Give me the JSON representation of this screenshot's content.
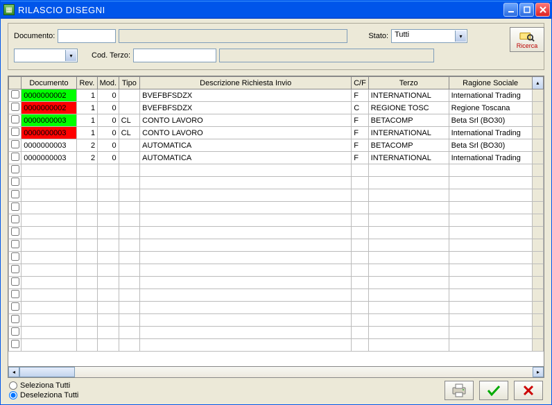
{
  "window": {
    "title": "RILASCIO DISEGNI"
  },
  "filters": {
    "documento_label": "Documento:",
    "documento_value": "",
    "documento_desc": "",
    "stato_label": "Stato:",
    "stato_value": "Tutti",
    "combo_value": "",
    "cod_terzo_label": "Cod. Terzo:",
    "cod_terzo_value": "",
    "terzo_desc": ""
  },
  "search_button": {
    "label": "Ricerca"
  },
  "columns": {
    "chk": "",
    "documento": "Documento",
    "rev": "Rev.",
    "mod": "Mod.",
    "tipo": "Tipo",
    "descr": "Descrizione Richiesta Invio",
    "cf": "C/F",
    "terzo": "Terzo",
    "ragione": "Ragione Sociale"
  },
  "rows": [
    {
      "chk": false,
      "doc": "0000000002",
      "doc_bg": "green",
      "rev": "1",
      "mod": "0",
      "tipo": "",
      "descr": "BVEFBFSDZX",
      "cf": "F",
      "terzo": "INTERNATIONAL",
      "ragione": "International Trading"
    },
    {
      "chk": false,
      "doc": "0000000002",
      "doc_bg": "red",
      "rev": "1",
      "mod": "0",
      "tipo": "",
      "descr": "BVEFBFSDZX",
      "cf": "C",
      "terzo": "REGIONE TOSC",
      "ragione": "Regione Toscana"
    },
    {
      "chk": false,
      "doc": "0000000003",
      "doc_bg": "green",
      "rev": "1",
      "mod": "0",
      "tipo": "CL",
      "descr": "CONTO LAVORO",
      "cf": "F",
      "terzo": "BETACOMP",
      "ragione": "Beta Srl   (BO30)"
    },
    {
      "chk": false,
      "doc": "0000000003",
      "doc_bg": "red",
      "rev": "1",
      "mod": "0",
      "tipo": "CL",
      "descr": "CONTO LAVORO",
      "cf": "F",
      "terzo": "INTERNATIONAL",
      "ragione": "International Trading"
    },
    {
      "chk": false,
      "doc": "0000000003",
      "doc_bg": "",
      "rev": "2",
      "mod": "0",
      "tipo": "",
      "descr": "AUTOMATICA",
      "cf": "F",
      "terzo": "BETACOMP",
      "ragione": "Beta Srl   (BO30)"
    },
    {
      "chk": false,
      "doc": "0000000003",
      "doc_bg": "",
      "rev": "2",
      "mod": "0",
      "tipo": "",
      "descr": "AUTOMATICA",
      "cf": "F",
      "terzo": "INTERNATIONAL",
      "ragione": "International Trading"
    }
  ],
  "empty_rows": 15,
  "footer": {
    "seleziona": "Seleziona Tutti",
    "deseleziona": "Deseleziona Tutti",
    "selected": "deseleziona"
  },
  "colors": {
    "titlebar": "#0055ea",
    "panel": "#ece9d8",
    "cell_green": "#00ff00",
    "cell_red": "#ff0000",
    "border": "#888888",
    "input_border": "#7f9db9"
  },
  "col_widths": {
    "chk": 18,
    "doc": 78,
    "rev": 30,
    "mod": 30,
    "tipo": 30,
    "descr": 300,
    "cf": 24,
    "terzo": 114,
    "ragione": 118,
    "vscroll": 16
  }
}
